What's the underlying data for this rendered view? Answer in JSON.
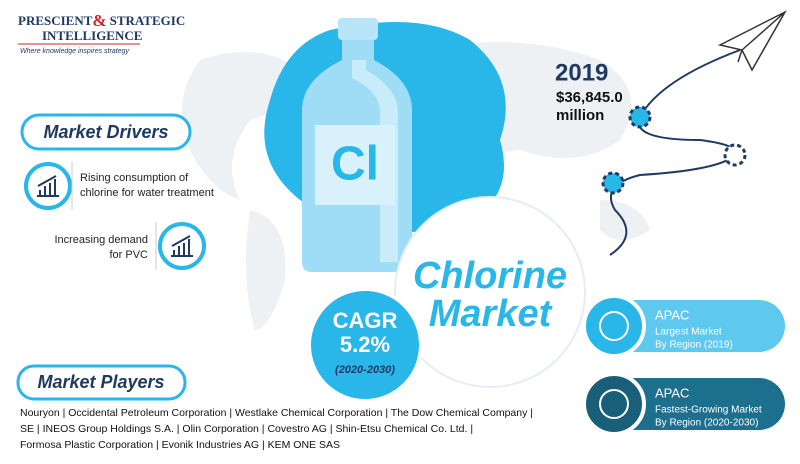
{
  "logo": {
    "name1": "PRESCIENT",
    "amp": "&",
    "name2": "STRATEGIC",
    "name3": "INTELLIGENCE",
    "tagline": "Where knowledge inspires strategy"
  },
  "bottle_label": "Cl",
  "headline": {
    "year": "2019",
    "value": "$36,845.0",
    "unit": "million"
  },
  "title": {
    "lines": [
      "Chlorine",
      "Market"
    ]
  },
  "cagr": {
    "label": "CAGR",
    "value": "5.2%",
    "period": "(2020-2030)"
  },
  "drivers": {
    "heading": "Market Drivers",
    "items": [
      {
        "lines": [
          "Rising consumption of",
          "chlorine for water treatment"
        ]
      },
      {
        "lines": [
          "Increasing demand",
          "for PVC"
        ]
      }
    ]
  },
  "players": {
    "heading": "Market Players",
    "lines": [
      "Nouryon | Occidental Petroleum Corporation | Westlake Chemical Corporation | The Dow Chemical Company |",
      "SE | INEOS Group Holdings S.A. | Olin Corporation | Covestro AG | Shin-Etsu Chemical Co. Ltd. |",
      "Formosa Plastic Corporation | Evonik Industries AG | KEM ONE SAS"
    ]
  },
  "regions": [
    {
      "name": "APAC",
      "lines": [
        "Largest Market",
        "By Region (2019)"
      ]
    },
    {
      "name": "APAC",
      "lines": [
        "Fastest-Growing Market",
        "By Region (2020-2030)"
      ]
    }
  ]
}
